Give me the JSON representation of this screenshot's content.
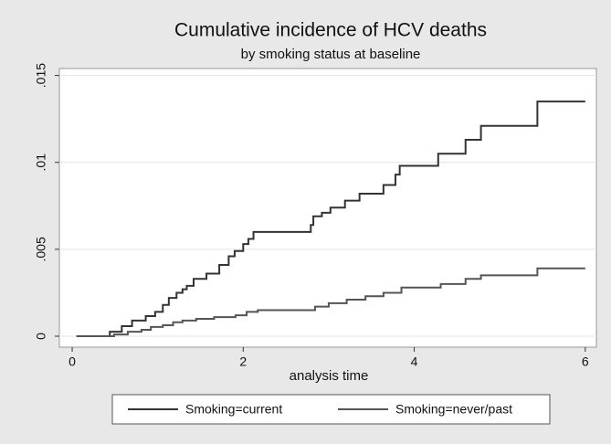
{
  "chart_data": {
    "type": "step",
    "title": "Cumulative incidence of HCV deaths",
    "subtitle": "by smoking status at baseline",
    "x_label": "analysis time",
    "xlim": [
      -0.15,
      6.13
    ],
    "ylim": [
      -0.00063,
      0.0154
    ],
    "xticks": [
      0,
      2,
      4,
      6
    ],
    "yticks": [
      {
        "value": 0,
        "label": "0"
      },
      {
        "value": 0.005,
        "label": ".005"
      },
      {
        "value": 0.01,
        "label": ".01"
      },
      {
        "value": 0.015,
        "label": ".015"
      }
    ],
    "grid": true,
    "legend_position": "bottom",
    "series": [
      {
        "name": "Smoking=current",
        "color": "#333333",
        "x": [
          0.05,
          0.44,
          0.58,
          0.7,
          0.86,
          0.97,
          1.06,
          1.13,
          1.22,
          1.29,
          1.34,
          1.42,
          1.57,
          1.72,
          1.83,
          1.9,
          2.0,
          2.06,
          2.12,
          2.79,
          2.82,
          2.92,
          3.02,
          3.19,
          3.36,
          3.64,
          3.78,
          3.83,
          4.28,
          4.6,
          4.78,
          5.44,
          6.0
        ],
        "values": [
          0,
          0.00026,
          0.00058,
          0.0009,
          0.00116,
          0.0014,
          0.0018,
          0.0022,
          0.0025,
          0.0027,
          0.0029,
          0.0033,
          0.0036,
          0.0041,
          0.0046,
          0.0049,
          0.0053,
          0.0056,
          0.006,
          0.0064,
          0.0069,
          0.0071,
          0.0074,
          0.0078,
          0.0082,
          0.0087,
          0.0093,
          0.0098,
          0.0105,
          0.0113,
          0.0121,
          0.0135,
          0.0135
        ]
      },
      {
        "name": "Smoking=never/past",
        "color": "#555555",
        "x": [
          0.05,
          0.49,
          0.65,
          0.81,
          0.92,
          1.06,
          1.18,
          1.29,
          1.45,
          1.66,
          1.91,
          2.04,
          2.17,
          2.84,
          3.0,
          3.21,
          3.43,
          3.64,
          3.85,
          4.31,
          4.6,
          4.78,
          5.44,
          6.0
        ],
        "values": [
          0,
          0.0001,
          0.00026,
          0.00037,
          0.00053,
          0.00063,
          0.0008,
          0.0009,
          0.001,
          0.0011,
          0.0012,
          0.0014,
          0.0015,
          0.0017,
          0.0019,
          0.0021,
          0.0023,
          0.0025,
          0.0028,
          0.003,
          0.0033,
          0.0035,
          0.0039,
          0.0039
        ]
      }
    ]
  }
}
